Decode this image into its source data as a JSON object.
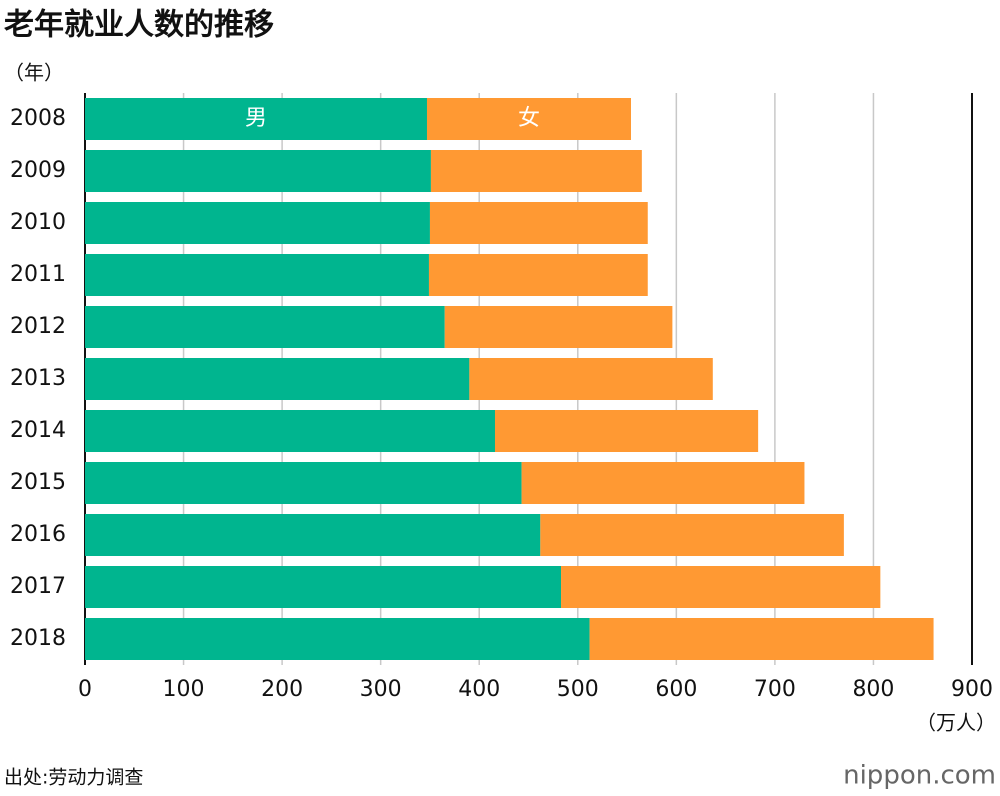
{
  "chart_data": {
    "type": "bar",
    "orientation": "horizontal",
    "stacked": true,
    "title": "老年就业人数的推移",
    "y_label": "（年）",
    "x_label": "（万人）",
    "source": "出处:劳动力调查",
    "brand": "nippon.com",
    "categories": [
      "2008",
      "2009",
      "2010",
      "2011",
      "2012",
      "2013",
      "2014",
      "2015",
      "2016",
      "2017",
      "2018"
    ],
    "series": [
      {
        "name": "男",
        "color": "#00b58f",
        "values": [
          347,
          351,
          350,
          349,
          365,
          390,
          416,
          443,
          462,
          483,
          512
        ]
      },
      {
        "name": "女",
        "color": "#ff9933",
        "values": [
          207,
          214,
          221,
          222,
          231,
          247,
          267,
          287,
          308,
          324,
          349
        ]
      }
    ],
    "xlim": [
      0,
      900
    ],
    "xticks": [
      0,
      100,
      200,
      300,
      400,
      500,
      600,
      700,
      800,
      900
    ],
    "grid": true
  }
}
